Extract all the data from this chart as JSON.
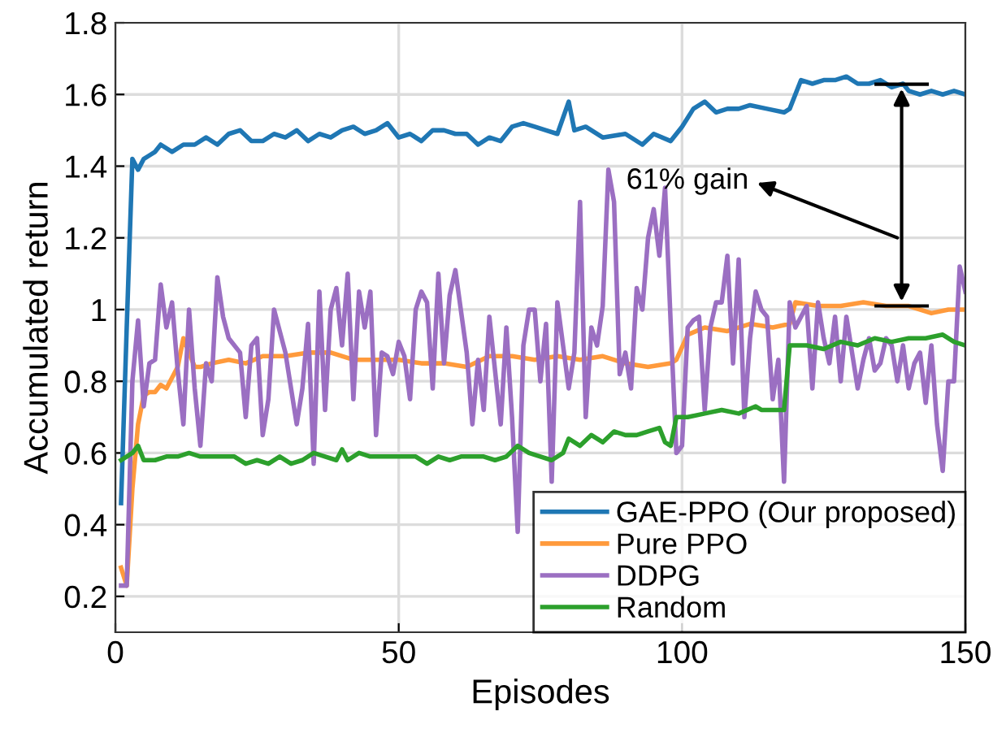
{
  "chart_data": {
    "type": "line",
    "xlabel": "Episodes",
    "ylabel": "Accumulated return",
    "xlim": [
      0,
      150
    ],
    "xticks": [
      0,
      50,
      100,
      150
    ],
    "ylim": [
      0.1,
      1.8
    ],
    "yticks": [
      0.2,
      0.4,
      0.6,
      0.8,
      1,
      1.2,
      1.4,
      1.6,
      1.8
    ],
    "grid": true,
    "legend": "bottom right",
    "annotations": [
      "61% gain"
    ],
    "series": [
      {
        "name": "GAE-PPO (Our proposed)",
        "color": "#1f77b4",
        "x": [
          1,
          2,
          3,
          4,
          5,
          6,
          7,
          8,
          10,
          12,
          14,
          16,
          18,
          20,
          22,
          24,
          26,
          28,
          30,
          32,
          34,
          36,
          38,
          40,
          42,
          44,
          46,
          48,
          50,
          52,
          54,
          56,
          58,
          60,
          62,
          64,
          66,
          68,
          70,
          72,
          74,
          76,
          78,
          80,
          81,
          83,
          86,
          90,
          93,
          95,
          98,
          100,
          102,
          104,
          106,
          108,
          110,
          112,
          115,
          118,
          119,
          121,
          123,
          125,
          127,
          129,
          131,
          133,
          135,
          137,
          139,
          140,
          142,
          144,
          146,
          148,
          150
        ],
        "values": [
          0.46,
          0.95,
          1.42,
          1.39,
          1.42,
          1.43,
          1.44,
          1.46,
          1.44,
          1.46,
          1.46,
          1.48,
          1.46,
          1.49,
          1.5,
          1.47,
          1.47,
          1.49,
          1.48,
          1.5,
          1.47,
          1.49,
          1.48,
          1.5,
          1.51,
          1.49,
          1.5,
          1.52,
          1.48,
          1.49,
          1.47,
          1.5,
          1.5,
          1.49,
          1.49,
          1.46,
          1.48,
          1.47,
          1.51,
          1.52,
          1.51,
          1.5,
          1.49,
          1.58,
          1.5,
          1.51,
          1.48,
          1.49,
          1.46,
          1.49,
          1.47,
          1.51,
          1.56,
          1.58,
          1.55,
          1.56,
          1.56,
          1.57,
          1.56,
          1.55,
          1.56,
          1.64,
          1.63,
          1.64,
          1.64,
          1.65,
          1.63,
          1.63,
          1.64,
          1.62,
          1.63,
          1.61,
          1.6,
          1.61,
          1.6,
          1.61,
          1.6
        ]
      },
      {
        "name": "Pure PPO",
        "color": "#ff9a3c",
        "x": [
          1,
          2,
          3,
          4,
          5,
          6,
          7,
          8,
          9,
          10,
          11,
          12,
          13,
          14,
          15,
          17,
          20,
          23,
          26,
          30,
          34,
          38,
          42,
          46,
          50,
          54,
          58,
          62,
          66,
          70,
          74,
          78,
          82,
          86,
          90,
          94,
          98,
          99,
          101,
          104,
          108,
          112,
          116,
          119,
          120,
          124,
          128,
          132,
          136,
          140,
          144,
          147,
          150
        ],
        "values": [
          0.28,
          0.23,
          0.5,
          0.68,
          0.76,
          0.77,
          0.77,
          0.79,
          0.78,
          0.81,
          0.84,
          0.92,
          0.88,
          0.84,
          0.84,
          0.85,
          0.86,
          0.85,
          0.87,
          0.87,
          0.88,
          0.88,
          0.86,
          0.86,
          0.86,
          0.85,
          0.85,
          0.84,
          0.87,
          0.87,
          0.86,
          0.87,
          0.86,
          0.87,
          0.85,
          0.84,
          0.85,
          0.86,
          0.93,
          0.95,
          0.94,
          0.96,
          0.95,
          0.96,
          1.02,
          1.01,
          1.01,
          1.02,
          1.01,
          1.01,
          0.99,
          1.0,
          1.0
        ]
      },
      {
        "name": "DDPG",
        "color": "#9b6fc2",
        "x": [
          1,
          2,
          3,
          4,
          5,
          6,
          7,
          8,
          9,
          10,
          11,
          12,
          13,
          14,
          15,
          16,
          17,
          18,
          19,
          20,
          22,
          23,
          24,
          25,
          26,
          27,
          28,
          30,
          32,
          33,
          34,
          35,
          36,
          37,
          38,
          39,
          40,
          41,
          42,
          43,
          44,
          45,
          46,
          47,
          48,
          49,
          50,
          51,
          52,
          53,
          54,
          55,
          56,
          57,
          58,
          59,
          60,
          62,
          63,
          64,
          65,
          66,
          67,
          68,
          69,
          70,
          71,
          72,
          73,
          74,
          75,
          76,
          77,
          78,
          80,
          81,
          82,
          83,
          84,
          85,
          86,
          87,
          88,
          89,
          90,
          91,
          92,
          93,
          94,
          95,
          96,
          97,
          98,
          99,
          100,
          101,
          102,
          103,
          104,
          105,
          106,
          107,
          108,
          109,
          110,
          111,
          112,
          113,
          114,
          115,
          116,
          117,
          118,
          119,
          120,
          121,
          122,
          123,
          124,
          125,
          126,
          127,
          128,
          129,
          130,
          131,
          132,
          133,
          134,
          135,
          136,
          137,
          138,
          139,
          140,
          141,
          142,
          143,
          144,
          145,
          146,
          147,
          148,
          149,
          150
        ],
        "values": [
          0.23,
          0.23,
          0.8,
          0.97,
          0.73,
          0.85,
          0.86,
          1.07,
          0.95,
          1.02,
          0.83,
          0.68,
          1.0,
          0.78,
          0.62,
          0.85,
          0.8,
          1.09,
          0.98,
          0.92,
          0.88,
          0.7,
          0.9,
          0.92,
          0.65,
          0.75,
          1.0,
          0.88,
          0.68,
          0.78,
          0.96,
          0.57,
          1.05,
          0.72,
          1.0,
          1.06,
          0.9,
          1.1,
          0.75,
          1.05,
          0.95,
          1.05,
          0.65,
          0.88,
          0.87,
          0.82,
          0.91,
          0.87,
          0.75,
          1.0,
          1.05,
          1.02,
          0.78,
          1.1,
          0.85,
          1.04,
          1.11,
          0.88,
          0.68,
          0.86,
          0.72,
          0.98,
          0.83,
          0.68,
          0.95,
          0.7,
          0.38,
          0.9,
          1.0,
          1.0,
          0.8,
          0.96,
          0.52,
          1.02,
          0.78,
          0.88,
          1.3,
          0.7,
          0.95,
          0.9,
          1.01,
          1.39,
          1.3,
          0.82,
          0.88,
          0.78,
          1.06,
          1.0,
          1.2,
          1.28,
          1.15,
          1.34,
          0.96,
          0.6,
          0.62,
          0.95,
          0.97,
          0.98,
          0.72,
          0.95,
          1.02,
          1.02,
          1.15,
          0.85,
          1.14,
          0.7,
          0.92,
          1.05,
          1.0,
          0.98,
          0.75,
          0.86,
          0.52,
          1.02,
          0.95,
          0.98,
          1.01,
          0.78,
          1.02,
          0.92,
          0.85,
          0.98,
          0.8,
          0.98,
          0.88,
          0.78,
          0.86,
          0.92,
          0.83,
          0.85,
          0.92,
          0.9,
          0.8,
          0.9,
          0.78,
          0.85,
          0.88,
          0.74,
          0.9,
          0.68,
          0.55,
          0.8,
          0.8,
          1.12,
          1.05
        ]
      },
      {
        "name": "Random",
        "color": "#2ca02c",
        "x": [
          1,
          2,
          3,
          4,
          5,
          7,
          9,
          11,
          13,
          15,
          17,
          19,
          21,
          23,
          25,
          27,
          29,
          31,
          33,
          35,
          37,
          39,
          40,
          41,
          43,
          45,
          47,
          49,
          51,
          53,
          55,
          57,
          59,
          61,
          63,
          65,
          67,
          69,
          71,
          73,
          75,
          77,
          79,
          80,
          82,
          84,
          86,
          88,
          90,
          92,
          94,
          96,
          97,
          98,
          99,
          101,
          104,
          107,
          110,
          113,
          114,
          118,
          119,
          122,
          125,
          128,
          131,
          134,
          137,
          140,
          143,
          146,
          148,
          150
        ],
        "values": [
          0.58,
          0.59,
          0.6,
          0.62,
          0.58,
          0.58,
          0.59,
          0.59,
          0.6,
          0.59,
          0.59,
          0.59,
          0.59,
          0.57,
          0.58,
          0.57,
          0.59,
          0.57,
          0.58,
          0.6,
          0.59,
          0.58,
          0.61,
          0.58,
          0.6,
          0.59,
          0.59,
          0.59,
          0.59,
          0.59,
          0.57,
          0.59,
          0.58,
          0.59,
          0.59,
          0.59,
          0.58,
          0.59,
          0.62,
          0.6,
          0.59,
          0.58,
          0.6,
          0.64,
          0.62,
          0.65,
          0.63,
          0.66,
          0.65,
          0.65,
          0.66,
          0.67,
          0.63,
          0.62,
          0.7,
          0.7,
          0.71,
          0.72,
          0.71,
          0.73,
          0.72,
          0.72,
          0.9,
          0.9,
          0.89,
          0.91,
          0.9,
          0.92,
          0.91,
          0.92,
          0.92,
          0.93,
          0.91,
          0.9
        ]
      }
    ]
  }
}
